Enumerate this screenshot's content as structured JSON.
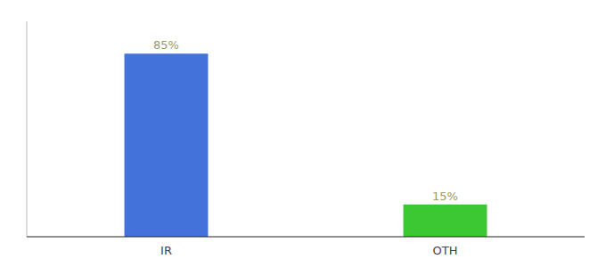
{
  "chart_data": {
    "type": "bar",
    "categories": [
      "IR",
      "OTH"
    ],
    "values": [
      85,
      15
    ],
    "value_labels": [
      "85%",
      "15%"
    ],
    "colors": [
      "#4472db",
      "#3cc832"
    ],
    "data_labels": true,
    "ylim": [
      0,
      100
    ],
    "yticks": [],
    "tick_labels": "x",
    "grid": false
  }
}
